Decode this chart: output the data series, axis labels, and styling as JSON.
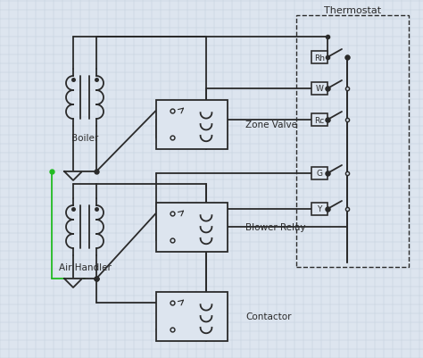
{
  "bg_color": "#dde5ef",
  "grid_color": "#c3cfdc",
  "line_color": "#2a2a2a",
  "green_color": "#22bb22",
  "figsize": [
    4.74,
    4.02
  ],
  "dpi": 100,
  "labels": {
    "boiler": "Boiler",
    "air_handler": "Air Handler",
    "zone_valve": "Zone Valve",
    "blower_relay": "Blower Relay",
    "contactor": "Contactor",
    "thermostat": "Thermostat",
    "Rh": "Rh",
    "W": "W",
    "Rc": "Rc",
    "G": "G",
    "Y": "Y"
  }
}
